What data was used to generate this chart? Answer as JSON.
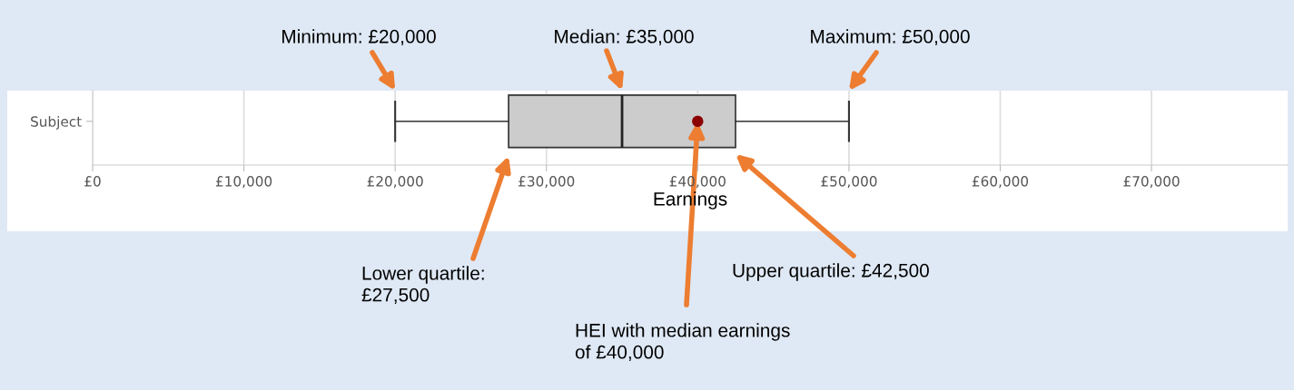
{
  "chart_data": {
    "type": "box",
    "orientation": "horizontal",
    "categories": [
      "Subject"
    ],
    "boxes": [
      {
        "low": 20000,
        "q1": 27500,
        "median": 35000,
        "q3": 42500,
        "high": 50000
      }
    ],
    "color": "#cccccc",
    "series": [
      {
        "type": "scatter",
        "color": "#8b0000",
        "x": [
          "Subject"
        ],
        "values": [
          40000
        ]
      }
    ],
    "xlabel": "Earnings",
    "xlim": [
      0,
      79000
    ],
    "xticks": [
      {
        "value": 0,
        "label": "£0"
      },
      {
        "value": 10000,
        "label": "£10,000"
      },
      {
        "value": 20000,
        "label": "£20,000"
      },
      {
        "value": 30000,
        "label": "£30,000"
      },
      {
        "value": 40000,
        "label": "£40,000"
      },
      {
        "value": 50000,
        "label": "£50,000"
      },
      {
        "value": 60000,
        "label": "£60,000"
      },
      {
        "value": 70000,
        "label": "£70,000"
      }
    ],
    "grid": "x",
    "marker": "circle",
    "annotations": [
      "Minimum: £20,000",
      "Median: £35,000",
      "Maximum: £50,000",
      "Lower quartile:\n£27,500",
      "Upper quartile: £42,500",
      {
        "text": "HEI with median earnings\nof £40,000",
        "x": 40000,
        "y": "Subject"
      }
    ]
  }
}
